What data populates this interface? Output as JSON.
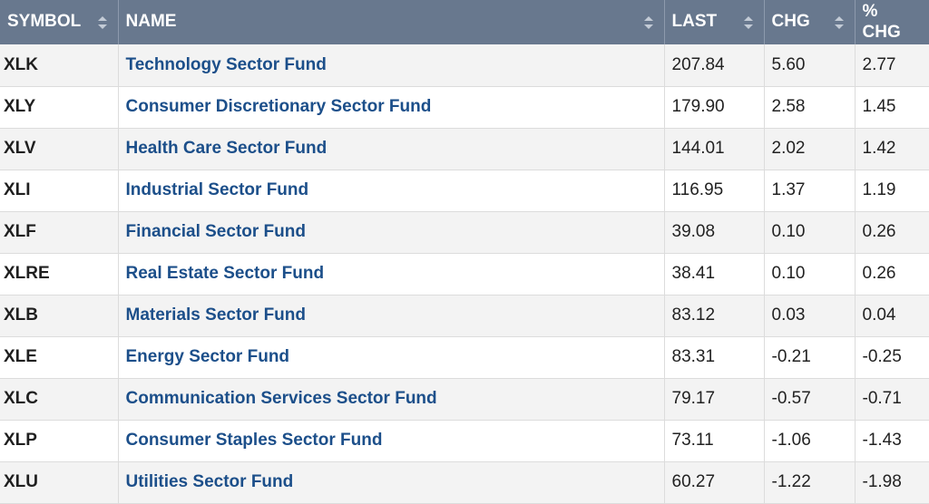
{
  "columns": {
    "symbol": "SYMBOL",
    "name": "NAME",
    "last": "LAST",
    "chg": "CHG",
    "pct_chg": "% CHG"
  },
  "colors": {
    "header_bg": "#68788e",
    "link": "#1c4f8a",
    "row_alt": "#f3f3f3"
  },
  "rows": [
    {
      "symbol": "XLK",
      "name": "Technology Sector Fund",
      "last": "207.84",
      "chg": "5.60",
      "pct_chg": "2.77"
    },
    {
      "symbol": "XLY",
      "name": "Consumer Discretionary Sector Fund",
      "last": "179.90",
      "chg": "2.58",
      "pct_chg": "1.45"
    },
    {
      "symbol": "XLV",
      "name": "Health Care Sector Fund",
      "last": "144.01",
      "chg": "2.02",
      "pct_chg": "1.42"
    },
    {
      "symbol": "XLI",
      "name": "Industrial Sector Fund",
      "last": "116.95",
      "chg": "1.37",
      "pct_chg": "1.19"
    },
    {
      "symbol": "XLF",
      "name": "Financial Sector Fund",
      "last": "39.08",
      "chg": "0.10",
      "pct_chg": "0.26"
    },
    {
      "symbol": "XLRE",
      "name": "Real Estate Sector Fund",
      "last": "38.41",
      "chg": "0.10",
      "pct_chg": "0.26"
    },
    {
      "symbol": "XLB",
      "name": "Materials Sector Fund",
      "last": "83.12",
      "chg": "0.03",
      "pct_chg": "0.04"
    },
    {
      "symbol": "XLE",
      "name": "Energy Sector Fund",
      "last": "83.31",
      "chg": "-0.21",
      "pct_chg": "-0.25"
    },
    {
      "symbol": "XLC",
      "name": "Communication Services Sector Fund",
      "last": "79.17",
      "chg": "-0.57",
      "pct_chg": "-0.71"
    },
    {
      "symbol": "XLP",
      "name": "Consumer Staples Sector Fund",
      "last": "73.11",
      "chg": "-1.06",
      "pct_chg": "-1.43"
    },
    {
      "symbol": "XLU",
      "name": "Utilities Sector Fund",
      "last": "60.27",
      "chg": "-1.22",
      "pct_chg": "-1.98"
    }
  ]
}
